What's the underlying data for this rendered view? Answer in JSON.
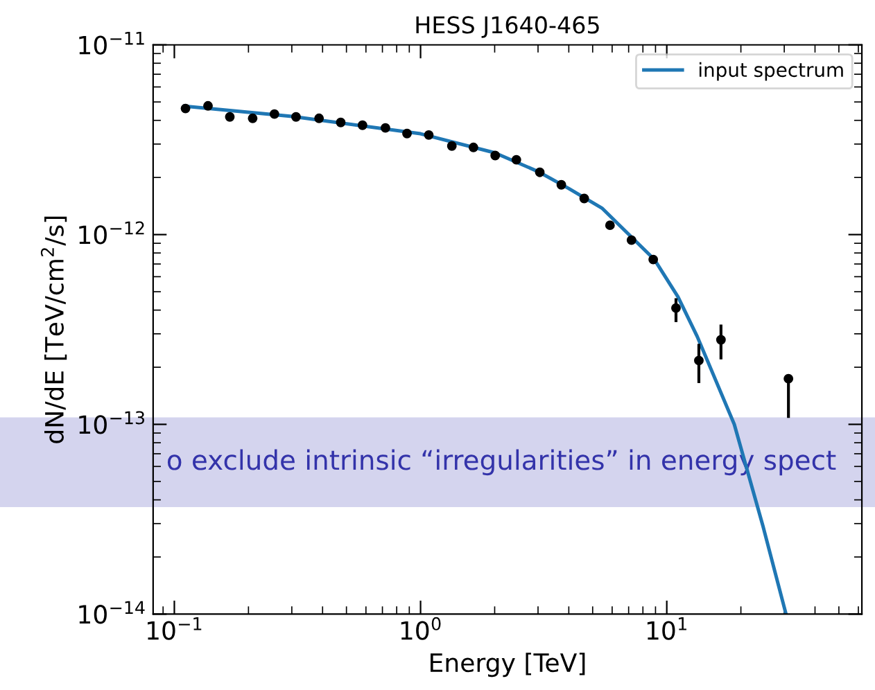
{
  "chart_data": {
    "type": "scatter",
    "title": "HESS J1640-465",
    "xlabel": "Energy [TeV]",
    "ylabel": "dN/dE [TeV/cm$^{2}$/s]",
    "log": "xy",
    "xlim": [
      0.082,
      62
    ],
    "ylim": [
      1e-14,
      1e-11
    ],
    "xticks": [
      {
        "value": 0.1,
        "label": "10$^{−1}$"
      },
      {
        "value": 1,
        "label": "10$^{0}$"
      },
      {
        "value": 10,
        "label": "10$^{1}$"
      }
    ],
    "yticks": [
      {
        "value": 1e-14,
        "label": "10$^{−14}$"
      },
      {
        "value": 1e-13,
        "label": "10$^{−13}$"
      },
      {
        "value": 1e-12,
        "label": "10$^{−12}$"
      },
      {
        "value": 1e-11,
        "label": "10$^{−11}$"
      }
    ],
    "legend": "top right",
    "grid": false,
    "annotations": [
      "o exclude intrinsic “irregularities” in energy spect"
    ],
    "series": [
      {
        "type": "line",
        "name": "input spectrum",
        "color": "#1f77b4",
        "marker": "none",
        "line_style": "solid",
        "x": [
          0.11,
          0.3,
          1.0,
          2.0,
          3.0,
          4.0,
          5.45,
          8.9,
          11.1,
          13.3,
          18.8,
          24.6,
          30.5
        ],
        "values": [
          4.75e-12,
          4.2e-12,
          3.4e-12,
          2.7e-12,
          2.15e-12,
          1.75e-12,
          1.38e-12,
          7.4e-13,
          4.7e-13,
          2.9e-13,
          1e-13,
          2.9e-14,
          1e-14
        ]
      },
      {
        "color": "#000000",
        "marker": "circle",
        "x": [
          0.111,
          0.137,
          0.168,
          0.208,
          0.255,
          0.312,
          0.387,
          0.474,
          0.581,
          0.72,
          0.881,
          1.08,
          1.34,
          1.64,
          2.01,
          2.45,
          3.05,
          3.73,
          4.62,
          5.88,
          7.19,
          8.81,
          10.9,
          13.5,
          16.6,
          31.2
        ],
        "values": [
          4.62e-12,
          4.77e-12,
          4.17e-12,
          4.1e-12,
          4.32e-12,
          4.17e-12,
          4.1e-12,
          3.9e-12,
          3.77e-12,
          3.65e-12,
          3.41e-12,
          3.35e-12,
          2.93e-12,
          2.88e-12,
          2.61e-12,
          2.48e-12,
          2.13e-12,
          1.83e-12,
          1.55e-12,
          1.12e-12,
          9.35e-13,
          7.39e-13,
          4.1e-13,
          2.17e-13,
          2.79e-13,
          1.74e-13
        ],
        "errors": [
          null,
          null,
          null,
          null,
          null,
          null,
          null,
          null,
          null,
          null,
          null,
          null,
          null,
          null,
          null,
          null,
          null,
          null,
          null,
          null,
          null,
          null,
          [
            3.52e-13,
            4.54e-13
          ],
          [
            1.68e-13,
            2.61e-13
          ],
          [
            2.24e-13,
            3.3e-13
          ],
          [
            1.1e-13,
            1.74e-13
          ]
        ]
      }
    ]
  }
}
